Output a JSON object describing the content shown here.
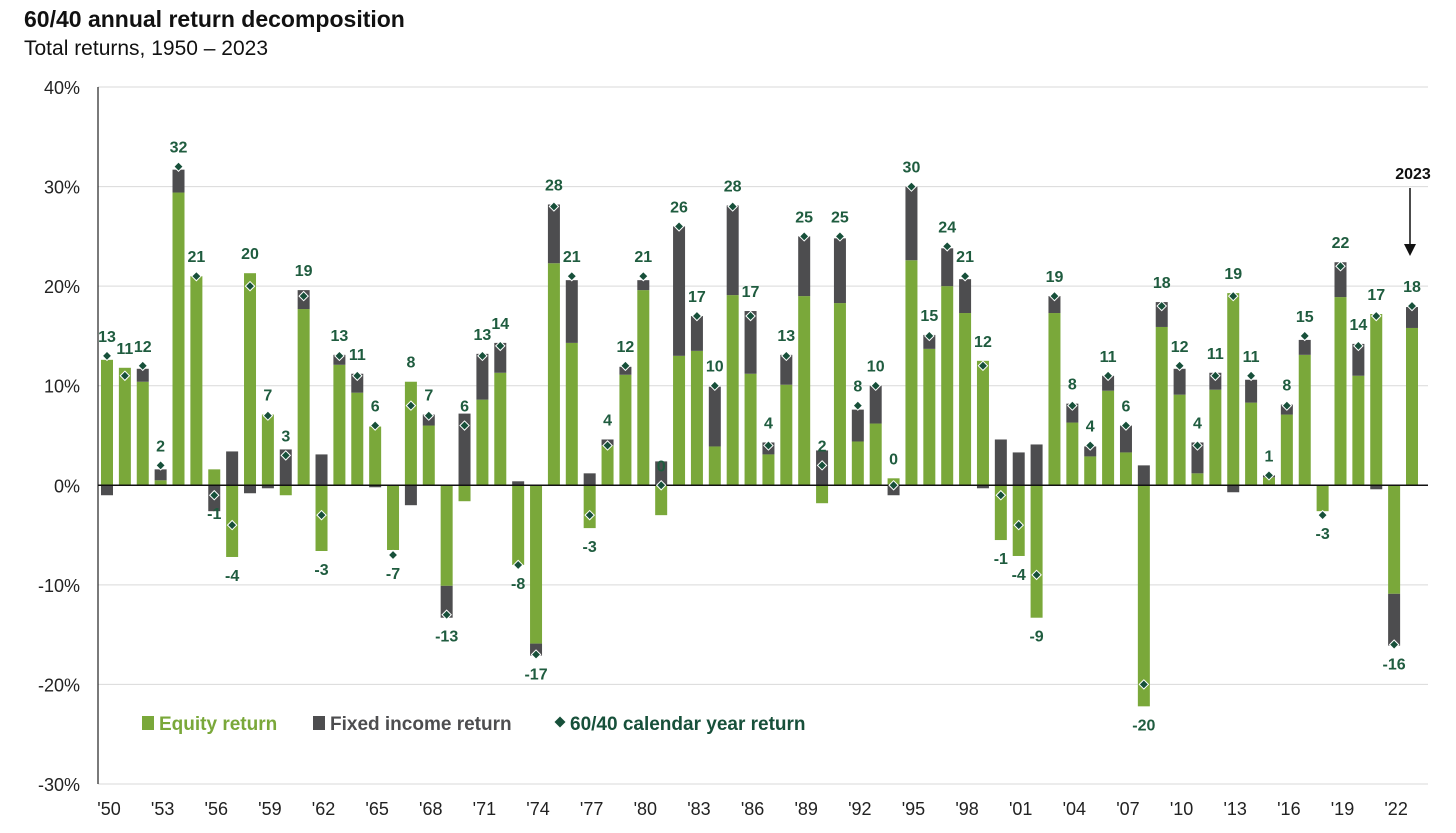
{
  "chart_data": {
    "type": "bar",
    "title": "60/40 annual return decomposition",
    "subtitle": "Total returns, 1950 – 2023",
    "ylim": [
      -30,
      40
    ],
    "yticks": [
      "-30%",
      "-20%",
      "-10%",
      "0%",
      "10%",
      "20%",
      "30%",
      "40%"
    ],
    "ytick_values": [
      -30,
      -20,
      -10,
      0,
      10,
      20,
      30,
      40
    ],
    "x": [
      1950,
      1951,
      1952,
      1953,
      1954,
      1955,
      1956,
      1957,
      1958,
      1959,
      1960,
      1961,
      1962,
      1963,
      1964,
      1965,
      1966,
      1967,
      1968,
      1969,
      1970,
      1971,
      1972,
      1973,
      1974,
      1975,
      1976,
      1977,
      1978,
      1979,
      1980,
      1981,
      1982,
      1983,
      1984,
      1985,
      1986,
      1987,
      1988,
      1989,
      1990,
      1991,
      1992,
      1993,
      1994,
      1995,
      1996,
      1997,
      1998,
      1999,
      2000,
      2001,
      2002,
      2003,
      2004,
      2005,
      2006,
      2007,
      2008,
      2009,
      2010,
      2011,
      2012,
      2013,
      2014,
      2015,
      2016,
      2017,
      2018,
      2019,
      2020,
      2021,
      2022,
      2023
    ],
    "xtick_labels": [
      "'50",
      "'53",
      "'56",
      "'59",
      "'62",
      "'65",
      "'68",
      "'71",
      "'74",
      "'77",
      "'80",
      "'83",
      "'86",
      "'89",
      "'92",
      "'95",
      "'98",
      "'01",
      "'04",
      "'07",
      "'10",
      "'13",
      "'16",
      "'19",
      "'22"
    ],
    "grid": true,
    "legend_position": "bottom-left",
    "colors": {
      "equity": "#7aa83a",
      "fixed": "#4d4d4f",
      "marker": "#17503a",
      "label": "#1f5c3f"
    },
    "series": [
      {
        "name": "Equity return",
        "kind": "bar",
        "values": [
          12.6,
          11.8,
          10.4,
          0.5,
          29.4,
          21.0,
          1.6,
          -7.2,
          21.3,
          7.1,
          -1.0,
          17.7,
          -6.6,
          12.1,
          9.3,
          5.9,
          -6.5,
          10.4,
          6.0,
          -10.1,
          -1.6,
          8.6,
          11.3,
          -8.0,
          -15.9,
          22.3,
          14.3,
          -4.3,
          4.0,
          11.1,
          19.6,
          -3.0,
          13.0,
          13.5,
          3.9,
          19.1,
          11.2,
          3.1,
          10.1,
          19.0,
          -1.8,
          18.3,
          4.4,
          6.2,
          0.7,
          22.6,
          13.7,
          20.0,
          17.3,
          12.5,
          -5.5,
          -7.1,
          -13.3,
          17.3,
          6.3,
          2.9,
          9.5,
          3.3,
          -22.2,
          15.9,
          9.1,
          1.2,
          9.6,
          19.3,
          8.3,
          0.8,
          7.1,
          13.1,
          -2.6,
          18.9,
          11.0,
          17.2,
          -10.9,
          15.8
        ]
      },
      {
        "name": "Fixed income return",
        "kind": "bar",
        "values": [
          -1.0,
          0.0,
          1.3,
          1.1,
          2.3,
          0.0,
          -2.6,
          3.4,
          -0.8,
          -0.3,
          3.6,
          1.9,
          3.1,
          1.0,
          1.9,
          -0.2,
          0.0,
          -2.0,
          1.1,
          -3.2,
          7.2,
          4.6,
          3.0,
          0.4,
          -1.2,
          5.9,
          6.3,
          1.2,
          0.6,
          0.8,
          1.0,
          2.4,
          13.0,
          3.5,
          6.0,
          9.0,
          6.3,
          1.2,
          3.0,
          6.0,
          3.5,
          6.5,
          3.2,
          3.8,
          -1.0,
          7.4,
          1.4,
          3.8,
          3.4,
          -0.3,
          4.6,
          3.3,
          4.1,
          1.7,
          1.9,
          1.0,
          1.5,
          2.7,
          2.0,
          2.5,
          2.6,
          3.1,
          1.7,
          -0.7,
          2.3,
          0.2,
          1.0,
          1.5,
          0.0,
          3.5,
          3.2,
          -0.4,
          -5.2,
          2.1
        ]
      },
      {
        "name": "60/40 calendar year return",
        "kind": "marker",
        "values": [
          13,
          11,
          12,
          2,
          32,
          21,
          -1,
          -4,
          20,
          7,
          3,
          19,
          -3,
          13,
          11,
          6,
          -7,
          8,
          7,
          -13,
          6,
          13,
          14,
          -8,
          -17,
          28,
          21,
          -3,
          4,
          12,
          21,
          0,
          26,
          17,
          10,
          28,
          17,
          4,
          13,
          25,
          2,
          25,
          8,
          10,
          0,
          30,
          15,
          24,
          21,
          12,
          -1,
          -4,
          -9,
          19,
          8,
          4,
          11,
          6,
          -20,
          18,
          12,
          4,
          11,
          19,
          11,
          1,
          8,
          15,
          -3,
          22,
          14,
          17,
          -16,
          18
        ]
      }
    ],
    "annotations": [
      {
        "text": "2023",
        "x": 2023
      }
    ]
  }
}
